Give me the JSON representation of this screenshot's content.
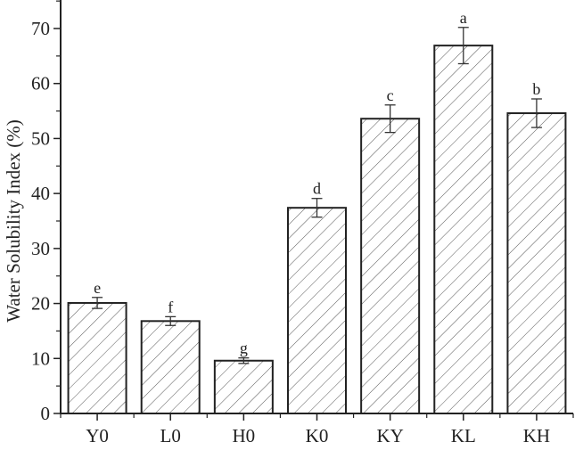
{
  "chart_data": {
    "type": "bar",
    "title": "",
    "xlabel": "",
    "ylabel": "Water Solubility Index (%)",
    "ylim": [
      0,
      75
    ],
    "yticks": [
      0,
      10,
      20,
      30,
      40,
      50,
      60,
      70
    ],
    "grid": false,
    "legend": null,
    "categories": [
      "Y0",
      "L0",
      "H0",
      "K0",
      "KY",
      "KL",
      "KH"
    ],
    "values": [
      20.1,
      16.8,
      9.6,
      37.4,
      53.6,
      66.9,
      54.6
    ],
    "errors": [
      1.0,
      0.8,
      0.5,
      1.7,
      2.5,
      3.3,
      2.6
    ],
    "significance_letters": [
      "e",
      "f",
      "g",
      "d",
      "c",
      "a",
      "b"
    ],
    "bar_pattern": "diagonal hatch",
    "bar_fill": "#ffffff",
    "bar_edge": "#222222"
  }
}
